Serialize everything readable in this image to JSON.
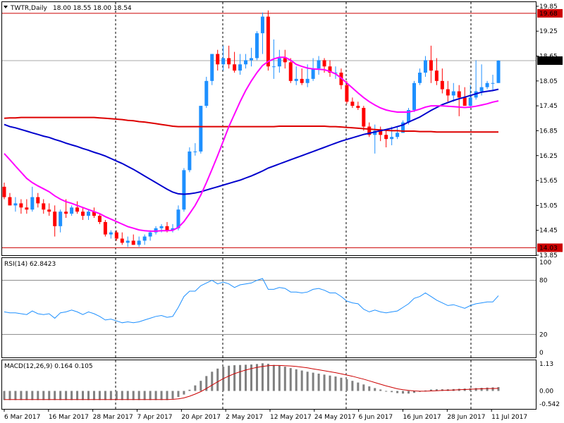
{
  "header": {
    "symbol_label": "TWTR,Daily",
    "ohlc_label": "18.00 18.55 18.00 18.54"
  },
  "price_panel": {
    "ylim": [
      13.85,
      19.95
    ],
    "y_ticks": [
      "19.85",
      "19.25",
      "18.65",
      "18.05",
      "17.45",
      "16.85",
      "16.25",
      "15.65",
      "15.05",
      "14.45",
      "13.85"
    ],
    "current_price": "18.54",
    "resistance_level": "19.68",
    "support_level": "14.03"
  },
  "rsi_panel": {
    "label": "RSI(14) 62.8423",
    "ylim": [
      0,
      100
    ],
    "y_ticks": [
      "100",
      "80",
      "20",
      "0"
    ],
    "levels": [
      80,
      20
    ]
  },
  "macd_panel": {
    "label": "MACD(12,26,9) 0.164 0.105",
    "ylim": [
      -0.542,
      1.13
    ],
    "y_ticks": [
      "1.13",
      "0.00",
      "-0.542"
    ]
  },
  "x_axis": {
    "labels": [
      "6 Mar 2017",
      "16 Mar 2017",
      "28 Mar 2017",
      "7 Apr 2017",
      "20 Apr 2017",
      "2 May 2017",
      "12 May 2017",
      "24 May 2017",
      "6 Jun 2017",
      "16 Jun 2017",
      "28 Jun 2017",
      "11 Jul 2017"
    ]
  },
  "colors": {
    "bull": "#1e90ff",
    "bear": "#ff0000",
    "ma_fast": "#ff00ff",
    "ma_mid": "#0000cd",
    "ma_slow": "#dd0000",
    "level_line": "#cc0000",
    "rsi_line": "#1e90ff",
    "macd_hist": "#808080",
    "macd_signal": "#cc0000"
  },
  "chart_data": {
    "type": "candlestick",
    "title": "TWTR,Daily",
    "dates": [
      "6 Mar 2017",
      "7 Mar 2017",
      "8 Mar 2017",
      "9 Mar 2017",
      "10 Mar 2017",
      "13 Mar 2017",
      "14 Mar 2017",
      "15 Mar 2017",
      "16 Mar 2017",
      "17 Mar 2017",
      "20 Mar 2017",
      "21 Mar 2017",
      "22 Mar 2017",
      "23 Mar 2017",
      "24 Mar 2017",
      "27 Mar 2017",
      "28 Mar 2017",
      "29 Mar 2017",
      "30 Mar 2017",
      "31 Mar 2017",
      "3 Apr 2017",
      "4 Apr 2017",
      "5 Apr 2017",
      "6 Apr 2017",
      "7 Apr 2017",
      "10 Apr 2017",
      "11 Apr 2017",
      "12 Apr 2017",
      "13 Apr 2017",
      "17 Apr 2017",
      "18 Apr 2017",
      "19 Apr 2017",
      "20 Apr 2017",
      "21 Apr 2017",
      "24 Apr 2017",
      "25 Apr 2017",
      "26 Apr 2017",
      "27 Apr 2017",
      "28 Apr 2017",
      "1 May 2017",
      "2 May 2017",
      "3 May 2017",
      "4 May 2017",
      "5 May 2017",
      "8 May 2017",
      "9 May 2017",
      "10 May 2017",
      "11 May 2017",
      "12 May 2017",
      "15 May 2017",
      "16 May 2017",
      "17 May 2017",
      "18 May 2017",
      "19 May 2017",
      "22 May 2017",
      "23 May 2017",
      "24 May 2017",
      "25 May 2017",
      "26 May 2017",
      "30 May 2017",
      "31 May 2017",
      "1 Jun 2017",
      "2 Jun 2017",
      "5 Jun 2017",
      "6 Jun 2017",
      "7 Jun 2017",
      "8 Jun 2017",
      "9 Jun 2017",
      "12 Jun 2017",
      "13 Jun 2017",
      "14 Jun 2017",
      "15 Jun 2017",
      "16 Jun 2017",
      "19 Jun 2017",
      "20 Jun 2017",
      "21 Jun 2017",
      "22 Jun 2017",
      "23 Jun 2017",
      "26 Jun 2017",
      "27 Jun 2017",
      "28 Jun 2017",
      "29 Jun 2017",
      "30 Jun 2017",
      "3 Jul 2017",
      "5 Jul 2017",
      "6 Jul 2017",
      "7 Jul 2017",
      "10 Jul 2017",
      "11 Jul 2017"
    ],
    "open": [
      15.5,
      15.25,
      15.05,
      15.1,
      15.0,
      14.95,
      15.25,
      15.1,
      14.95,
      14.9,
      14.55,
      14.9,
      14.85,
      15.0,
      14.9,
      14.8,
      14.9,
      14.8,
      14.65,
      14.35,
      14.4,
      14.25,
      14.15,
      14.2,
      14.1,
      14.2,
      14.3,
      14.4,
      14.5,
      14.55,
      14.45,
      14.5,
      14.95,
      15.9,
      16.35,
      16.35,
      17.45,
      18.05,
      18.7,
      18.45,
      18.6,
      18.45,
      18.3,
      18.45,
      18.55,
      18.6,
      19.2,
      19.6,
      18.4,
      18.4,
      18.6,
      18.5,
      18.05,
      18.1,
      18.0,
      18.1,
      18.35,
      18.55,
      18.4,
      18.25,
      18.25,
      17.95,
      17.55,
      17.45,
      17.4,
      16.95,
      16.75,
      16.85,
      16.75,
      16.65,
      16.7,
      16.8,
      17.05,
      17.35,
      18.0,
      18.25,
      18.55,
      18.3,
      18.05,
      17.85,
      17.7,
      17.8,
      17.65,
      17.45,
      17.65,
      17.8,
      17.9,
      18.0,
      18.0
    ],
    "high": [
      15.6,
      15.35,
      15.25,
      15.2,
      15.2,
      15.5,
      15.35,
      15.2,
      15.1,
      15.05,
      14.95,
      15.2,
      15.05,
      15.15,
      15.0,
      14.95,
      15.0,
      14.85,
      14.7,
      14.45,
      14.45,
      14.4,
      14.3,
      14.35,
      14.3,
      14.35,
      14.45,
      14.55,
      14.6,
      14.65,
      14.6,
      15.05,
      15.95,
      16.45,
      16.55,
      17.45,
      18.15,
      18.7,
      18.8,
      18.9,
      18.9,
      18.75,
      18.7,
      18.7,
      18.85,
      19.25,
      19.7,
      19.75,
      19.05,
      18.8,
      18.8,
      18.6,
      18.4,
      18.35,
      18.45,
      18.6,
      18.65,
      18.6,
      18.55,
      18.4,
      18.35,
      18.05,
      17.65,
      17.55,
      17.45,
      17.05,
      17.0,
      16.95,
      16.85,
      16.95,
      16.95,
      17.1,
      17.4,
      18.05,
      18.35,
      18.65,
      18.9,
      18.6,
      18.35,
      18.05,
      18.0,
      17.95,
      17.9,
      17.95,
      18.55,
      18.45,
      18.05,
      18.2,
      18.55
    ],
    "low": [
      15.2,
      15.05,
      14.9,
      14.85,
      14.85,
      14.9,
      15.0,
      14.85,
      14.8,
      14.3,
      14.4,
      14.75,
      14.8,
      14.85,
      14.7,
      14.7,
      14.75,
      14.6,
      14.3,
      14.25,
      14.2,
      14.1,
      14.05,
      14.1,
      14.05,
      14.1,
      14.2,
      14.35,
      14.4,
      14.4,
      14.4,
      14.45,
      14.9,
      15.85,
      16.25,
      16.3,
      17.4,
      17.95,
      18.3,
      18.3,
      18.35,
      18.25,
      18.2,
      18.35,
      18.4,
      18.55,
      18.7,
      18.3,
      18.1,
      18.25,
      18.35,
      18.0,
      17.95,
      17.95,
      17.9,
      18.05,
      18.2,
      18.25,
      18.15,
      18.1,
      17.85,
      17.5,
      17.4,
      17.35,
      16.85,
      16.7,
      16.3,
      16.6,
      16.45,
      16.5,
      16.65,
      16.8,
      17.0,
      17.3,
      17.95,
      18.15,
      18.0,
      17.95,
      17.75,
      17.55,
      17.55,
      17.2,
      17.5,
      17.4,
      17.6,
      17.7,
      17.85,
      17.8,
      18.0
    ],
    "close": [
      15.25,
      15.05,
      15.1,
      15.0,
      14.95,
      15.25,
      15.1,
      14.95,
      14.9,
      14.55,
      14.9,
      14.85,
      15.0,
      14.9,
      14.8,
      14.9,
      14.8,
      14.65,
      14.35,
      14.4,
      14.25,
      14.15,
      14.2,
      14.1,
      14.2,
      14.3,
      14.4,
      14.5,
      14.55,
      14.45,
      14.5,
      14.95,
      15.9,
      16.35,
      16.35,
      17.45,
      18.05,
      18.7,
      18.45,
      18.6,
      18.45,
      18.3,
      18.45,
      18.55,
      18.6,
      19.2,
      19.6,
      18.4,
      18.4,
      18.6,
      18.5,
      18.05,
      18.1,
      18.0,
      18.1,
      18.35,
      18.55,
      18.4,
      18.25,
      18.25,
      17.95,
      17.55,
      17.45,
      17.4,
      16.95,
      16.75,
      16.85,
      16.75,
      16.65,
      16.7,
      16.8,
      17.05,
      17.35,
      18.0,
      18.25,
      18.55,
      18.3,
      18.05,
      17.85,
      17.7,
      17.8,
      17.65,
      17.45,
      17.65,
      17.8,
      17.9,
      18.0,
      18.0,
      18.54
    ],
    "ma_fast": [
      16.3,
      16.15,
      16.0,
      15.85,
      15.7,
      15.6,
      15.52,
      15.45,
      15.38,
      15.28,
      15.2,
      15.14,
      15.1,
      15.05,
      15.0,
      14.95,
      14.9,
      14.85,
      14.78,
      14.72,
      14.66,
      14.6,
      14.54,
      14.5,
      14.46,
      14.44,
      14.43,
      14.43,
      14.44,
      14.44,
      14.45,
      14.52,
      14.66,
      14.85,
      15.05,
      15.3,
      15.6,
      15.92,
      16.25,
      16.6,
      16.95,
      17.25,
      17.55,
      17.82,
      18.05,
      18.25,
      18.42,
      18.52,
      18.58,
      18.62,
      18.62,
      18.55,
      18.45,
      18.4,
      18.36,
      18.34,
      18.33,
      18.32,
      18.28,
      18.22,
      18.12,
      18.0,
      17.88,
      17.76,
      17.65,
      17.55,
      17.47,
      17.4,
      17.35,
      17.32,
      17.3,
      17.3,
      17.3,
      17.33,
      17.37,
      17.42,
      17.45,
      17.45,
      17.45,
      17.44,
      17.43,
      17.42,
      17.41,
      17.42,
      17.44,
      17.47,
      17.5,
      17.54,
      17.57
    ],
    "ma_mid": [
      17.0,
      16.95,
      16.92,
      16.88,
      16.84,
      16.8,
      16.76,
      16.72,
      16.69,
      16.64,
      16.6,
      16.55,
      16.51,
      16.47,
      16.42,
      16.38,
      16.33,
      16.29,
      16.24,
      16.18,
      16.12,
      16.06,
      15.99,
      15.92,
      15.84,
      15.76,
      15.68,
      15.6,
      15.52,
      15.44,
      15.37,
      15.33,
      15.32,
      15.33,
      15.35,
      15.38,
      15.42,
      15.46,
      15.5,
      15.54,
      15.58,
      15.62,
      15.66,
      15.71,
      15.76,
      15.82,
      15.88,
      15.95,
      16.0,
      16.05,
      16.1,
      16.15,
      16.2,
      16.25,
      16.3,
      16.35,
      16.4,
      16.45,
      16.5,
      16.55,
      16.6,
      16.64,
      16.68,
      16.72,
      16.76,
      16.79,
      16.82,
      16.85,
      16.88,
      16.91,
      16.95,
      16.99,
      17.06,
      17.12,
      17.18,
      17.26,
      17.34,
      17.41,
      17.48,
      17.53,
      17.58,
      17.62,
      17.66,
      17.7,
      17.74,
      17.78,
      17.8,
      17.82,
      17.85
    ],
    "ma_slow": [
      17.15,
      17.16,
      17.16,
      17.17,
      17.17,
      17.17,
      17.17,
      17.17,
      17.17,
      17.17,
      17.17,
      17.17,
      17.17,
      17.17,
      17.17,
      17.17,
      17.17,
      17.16,
      17.15,
      17.14,
      17.13,
      17.12,
      17.1,
      17.09,
      17.07,
      17.06,
      17.04,
      17.02,
      17.0,
      16.98,
      16.96,
      16.95,
      16.95,
      16.95,
      16.95,
      16.95,
      16.95,
      16.95,
      16.95,
      16.95,
      16.95,
      16.95,
      16.95,
      16.95,
      16.95,
      16.95,
      16.95,
      16.95,
      16.95,
      16.96,
      16.96,
      16.96,
      16.96,
      16.96,
      16.96,
      16.96,
      16.96,
      16.96,
      16.95,
      16.95,
      16.94,
      16.93,
      16.92,
      16.91,
      16.9,
      16.89,
      16.88,
      16.87,
      16.86,
      16.85,
      16.85,
      16.84,
      16.84,
      16.84,
      16.83,
      16.83,
      16.83,
      16.82,
      16.82,
      16.82,
      16.82,
      16.82,
      16.82,
      16.82,
      16.82,
      16.82,
      16.82,
      16.82,
      16.82
    ],
    "rsi": [
      45,
      44,
      44,
      43,
      42,
      46,
      43,
      42,
      43,
      38,
      44,
      45,
      47,
      45,
      42,
      45,
      43,
      40,
      36,
      37,
      35,
      33,
      34,
      33,
      34,
      36,
      38,
      40,
      41,
      39,
      40,
      50,
      62,
      68,
      68,
      74,
      77,
      80,
      76,
      78,
      76,
      72,
      75,
      76,
      77,
      80,
      82,
      70,
      70,
      72,
      71,
      67,
      67,
      66,
      67,
      70,
      71,
      69,
      66,
      66,
      62,
      57,
      55,
      54,
      48,
      45,
      47,
      45,
      44,
      45,
      46,
      50,
      54,
      60,
      62,
      66,
      62,
      58,
      55,
      52,
      53,
      51,
      49,
      52,
      54,
      55,
      56,
      56,
      63
    ],
    "macd_hist": [
      -0.38,
      -0.38,
      -0.38,
      -0.38,
      -0.38,
      -0.38,
      -0.38,
      -0.38,
      -0.38,
      -0.38,
      -0.38,
      -0.38,
      -0.38,
      -0.38,
      -0.38,
      -0.38,
      -0.38,
      -0.38,
      -0.38,
      -0.38,
      -0.38,
      -0.38,
      -0.38,
      -0.38,
      -0.38,
      -0.38,
      -0.38,
      -0.38,
      -0.38,
      -0.38,
      -0.33,
      -0.25,
      -0.15,
      0.05,
      0.23,
      0.42,
      0.62,
      0.8,
      0.93,
      1.01,
      1.05,
      1.07,
      1.08,
      1.09,
      1.1,
      1.12,
      1.15,
      1.13,
      1.08,
      1.05,
      1.01,
      0.95,
      0.9,
      0.85,
      0.8,
      0.76,
      0.72,
      0.68,
      0.64,
      0.6,
      0.55,
      0.49,
      0.42,
      0.35,
      0.27,
      0.19,
      0.12,
      0.06,
      -0.01,
      -0.05,
      -0.09,
      -0.11,
      -0.11,
      -0.08,
      -0.04,
      0.02,
      0.06,
      0.07,
      0.07,
      0.07,
      0.08,
      0.09,
      0.1,
      0.11,
      0.12,
      0.13,
      0.14,
      0.15,
      0.16
    ],
    "macd_signal": [
      -0.36,
      -0.36,
      -0.36,
      -0.36,
      -0.36,
      -0.36,
      -0.36,
      -0.36,
      -0.36,
      -0.36,
      -0.36,
      -0.36,
      -0.36,
      -0.36,
      -0.36,
      -0.36,
      -0.36,
      -0.36,
      -0.36,
      -0.36,
      -0.36,
      -0.36,
      -0.36,
      -0.36,
      -0.36,
      -0.36,
      -0.36,
      -0.36,
      -0.36,
      -0.36,
      -0.35,
      -0.33,
      -0.29,
      -0.22,
      -0.13,
      -0.03,
      0.1,
      0.24,
      0.38,
      0.51,
      0.62,
      0.72,
      0.8,
      0.87,
      0.93,
      0.98,
      1.02,
      1.05,
      1.06,
      1.06,
      1.05,
      1.04,
      1.02,
      0.99,
      0.96,
      0.92,
      0.88,
      0.84,
      0.8,
      0.76,
      0.71,
      0.66,
      0.61,
      0.55,
      0.49,
      0.42,
      0.35,
      0.28,
      0.21,
      0.15,
      0.09,
      0.05,
      0.02,
      0.0,
      -0.01,
      -0.01,
      0.0,
      0.01,
      0.02,
      0.03,
      0.04,
      0.05,
      0.06,
      0.07,
      0.08,
      0.09,
      0.1,
      0.1,
      0.105
    ]
  }
}
